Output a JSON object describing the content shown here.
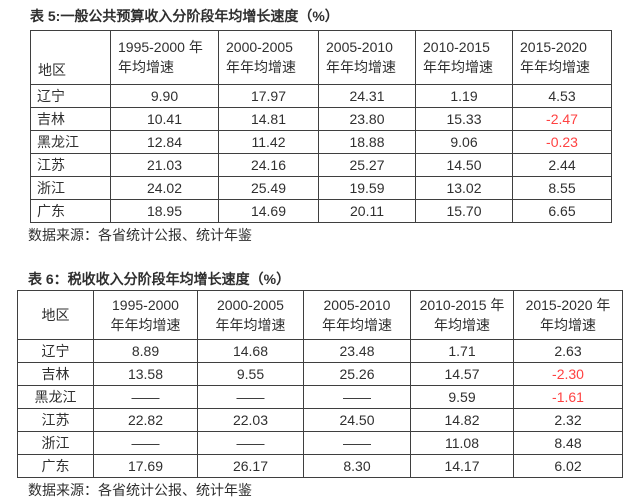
{
  "colors": {
    "text": "#2f2f2f",
    "border": "#3f3f3f",
    "negative": "#ff4242",
    "background": "#ffffff"
  },
  "tables": [
    {
      "title": "表 5:一般公共预算收入分阶段年均增长速度（%）",
      "headers": [
        "地区",
        "1995-2000 年\n年均增速",
        "2000-2005\n年年均增速",
        "2005-2010\n年年均增速",
        "2010-2015\n年年均增速",
        "2015-2020\n年年均增速"
      ],
      "rows": [
        {
          "region": "辽宁",
          "values": [
            "9.90",
            "17.97",
            "24.31",
            "1.19",
            "4.53"
          ]
        },
        {
          "region": "吉林",
          "values": [
            "10.41",
            "14.81",
            "23.80",
            "15.33",
            "-2.47"
          ]
        },
        {
          "region": "黑龙江",
          "values": [
            "12.84",
            "11.42",
            "18.88",
            "9.06",
            "-0.23"
          ]
        },
        {
          "region": "江苏",
          "values": [
            "21.03",
            "24.16",
            "25.27",
            "14.50",
            "2.44"
          ]
        },
        {
          "region": "浙江",
          "values": [
            "24.02",
            "25.49",
            "19.59",
            "13.02",
            "8.55"
          ]
        },
        {
          "region": "广东",
          "values": [
            "18.95",
            "14.69",
            "20.11",
            "15.70",
            "6.65"
          ]
        }
      ],
      "source": "数据来源：各省统计公报、统计年鉴"
    },
    {
      "title": "表 6：税收收入分阶段年均增长速度（%）",
      "headers": [
        "地区",
        "1995-2000\n年年均增速",
        "2000-2005\n年年均增速",
        "2005-2010\n年年均增速",
        "2010-2015 年\n年均增速",
        "2015-2020 年\n年均增速"
      ],
      "rows": [
        {
          "region": "辽宁",
          "values": [
            "8.89",
            "14.68",
            "23.48",
            "1.71",
            "2.63"
          ]
        },
        {
          "region": "吉林",
          "values": [
            "13.58",
            "9.55",
            "25.26",
            "14.57",
            "-2.30"
          ]
        },
        {
          "region": "黑龙江",
          "values": [
            "——",
            "——",
            "——",
            "9.59",
            "-1.61"
          ]
        },
        {
          "region": "江苏",
          "values": [
            "22.82",
            "22.03",
            "24.50",
            "14.82",
            "2.32"
          ]
        },
        {
          "region": "浙江",
          "values": [
            "——",
            "——",
            "——",
            "11.08",
            "8.48"
          ]
        },
        {
          "region": "广东",
          "values": [
            "17.69",
            "26.17",
            "8.30",
            "14.17",
            "6.02"
          ]
        }
      ],
      "source": "数据来源：各省统计公报、统计年鉴"
    }
  ]
}
